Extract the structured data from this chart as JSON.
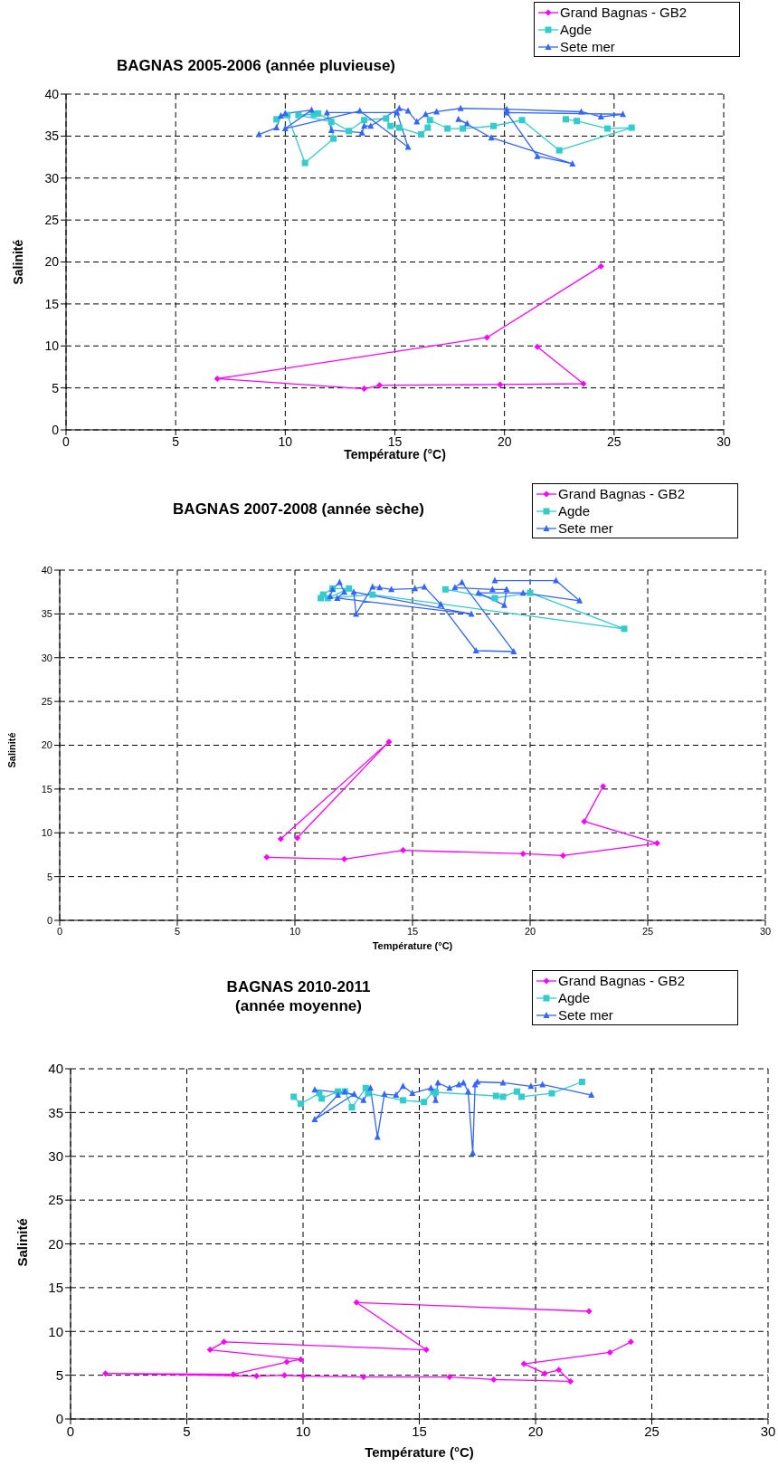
{
  "chart_data": [
    {
      "type": "line",
      "title": "BAGNAS 2005-2006 (année pluvieuse)",
      "xlabel": "Température (°C)",
      "ylabel": "Salinité",
      "xlim": [
        0,
        30
      ],
      "xticks": [
        0,
        5,
        10,
        15,
        20,
        25,
        30
      ],
      "ylim": [
        0,
        40
      ],
      "yticks": [
        0,
        5,
        10,
        15,
        20,
        25,
        30,
        35,
        40
      ],
      "grid": true,
      "legend": "top right",
      "line_style": "solid",
      "series": [
        {
          "name": "Grand Bagnas - GB2",
          "color": "#ff00ff",
          "marker": "diamond",
          "x": [
            24.4,
            19.2,
            6.9,
            13.6,
            14.3,
            19.8,
            23.6,
            21.5
          ],
          "values": [
            19.5,
            11.0,
            6.1,
            4.9,
            5.3,
            5.4,
            5.5,
            9.9
          ]
        },
        {
          "name": "Agde",
          "color": "#33cccc",
          "marker": "square",
          "x": [
            9.6,
            10.1,
            10.9,
            12.2,
            12.1,
            10.6,
            11.3,
            11.5,
            12.9,
            13.6,
            14.6,
            14.8,
            15.2,
            16.2,
            16.5,
            16.6,
            17.4,
            18.1,
            19.5,
            20.8,
            22.5,
            25.8,
            24.7,
            23.3,
            22.8
          ],
          "values": [
            37.0,
            37.5,
            31.8,
            34.7,
            36.7,
            37.5,
            37.6,
            37.7,
            35.6,
            36.9,
            37.1,
            36.2,
            36.0,
            35.2,
            36.0,
            36.9,
            35.9,
            35.9,
            36.2,
            36.9,
            33.3,
            36.0,
            35.9,
            36.8,
            37.0
          ]
        },
        {
          "name": "Sete mer",
          "color": "#3366ff",
          "marker": "triangle",
          "x": [
            8.8,
            9.6,
            9.8,
            10.0,
            11.2,
            10.0,
            13.4,
            15.6,
            15.1,
            11.9,
            12.1,
            13.5,
            13.6,
            13.9,
            15.2,
            15.6,
            16.0,
            16.4,
            16.9,
            18.0,
            20.1,
            23.5,
            24.4,
            25.4,
            20.1,
            21.5,
            23.1,
            19.4,
            17.9,
            18.3
          ],
          "values": [
            35.2,
            36.0,
            37.4,
            37.7,
            38.1,
            35.9,
            38.0,
            33.7,
            37.8,
            37.8,
            35.7,
            35.4,
            36.2,
            36.2,
            38.3,
            38.0,
            36.7,
            37.6,
            37.9,
            38.3,
            38.2,
            37.9,
            37.3,
            37.6,
            37.8,
            32.6,
            31.7,
            34.8,
            37.0,
            36.5
          ]
        }
      ]
    },
    {
      "type": "line",
      "title": "BAGNAS 2007-2008 (année sèche)",
      "xlabel": "Température (°C)",
      "ylabel": "Salinité",
      "xlim": [
        0,
        30
      ],
      "xticks": [
        0,
        5,
        10,
        15,
        20,
        25,
        30
      ],
      "ylim": [
        0,
        40
      ],
      "yticks": [
        0,
        5,
        10,
        15,
        20,
        25,
        30,
        35,
        40
      ],
      "grid": true,
      "legend": "top right",
      "line_style": "solid",
      "series": [
        {
          "name": "Grand Bagnas - GB2",
          "color": "#ff00ff",
          "marker": "diamond",
          "x": [
            23.1,
            22.3,
            25.4,
            21.4,
            19.7,
            14.6,
            12.1,
            8.8,
            null,
            9.4,
            14.0,
            10.1
          ],
          "values": [
            15.3,
            11.3,
            8.8,
            7.4,
            7.6,
            8.0,
            7.0,
            7.2,
            null,
            9.3,
            20.4,
            9.4
          ]
        },
        {
          "name": "Agde",
          "color": "#33cccc",
          "marker": "square",
          "x": [
            11.1,
            11.2,
            11.6,
            12.3,
            11.4,
            13.3,
            24.0,
            20.0,
            18.5,
            16.4
          ],
          "values": [
            36.8,
            37.2,
            37.9,
            37.9,
            36.8,
            37.2,
            33.3,
            37.4,
            36.8,
            37.8
          ]
        },
        {
          "name": "Sete mer",
          "color": "#3366ff",
          "marker": "triangle",
          "x": [
            11.5,
            11.6,
            11.9,
            12.1,
            11.8,
            17.5,
            12.5,
            12.6,
            13.3,
            13.6,
            14.1,
            15.1,
            15.5,
            16.2,
            17.7,
            19.3,
            17.1,
            16.8,
            18.4,
            19.0,
            18.9,
            17.8,
            19.7,
            22.1,
            21.1,
            18.5
          ],
          "values": [
            37.0,
            37.8,
            38.6,
            37.5,
            36.8,
            35.0,
            37.5,
            35.0,
            38.1,
            38.0,
            37.8,
            37.9,
            38.1,
            36.1,
            30.8,
            30.7,
            38.6,
            38.0,
            37.8,
            37.8,
            36.0,
            37.4,
            37.4,
            36.5,
            38.8,
            38.8
          ]
        }
      ]
    },
    {
      "type": "line",
      "title": "BAGNAS 2010-2011\n(année moyenne)",
      "xlabel": "Température (°C)",
      "ylabel": "Salinité",
      "xlim": [
        0,
        30
      ],
      "xticks": [
        0,
        5,
        10,
        15,
        20,
        25,
        30
      ],
      "ylim": [
        0,
        40
      ],
      "yticks": [
        0,
        5,
        10,
        15,
        20,
        25,
        30,
        35,
        40
      ],
      "grid": true,
      "legend": "top right",
      "line_style": "solid",
      "series": [
        {
          "name": "Grand Bagnas - GB2",
          "color": "#ff00ff",
          "marker": "diamond",
          "x": [
            22.3,
            12.3,
            15.3,
            6.6,
            6.0,
            9.9,
            9.3,
            7.0,
            1.5,
            8.0,
            9.2,
            10.0,
            12.6,
            16.3,
            18.2,
            21.5,
            21.0,
            20.4,
            19.5,
            23.2,
            24.1
          ],
          "values": [
            12.3,
            13.3,
            7.9,
            8.8,
            7.9,
            6.8,
            6.5,
            5.1,
            5.2,
            4.9,
            5.0,
            4.9,
            4.8,
            4.8,
            4.5,
            4.3,
            5.6,
            5.2,
            6.3,
            7.6,
            8.8
          ]
        },
        {
          "name": "Agde",
          "color": "#33cccc",
          "marker": "square",
          "x": [
            9.6,
            9.9,
            10.7,
            10.8,
            11.5,
            11.8,
            12.1,
            12.7,
            12.8,
            14.3,
            15.2,
            15.6,
            15.7,
            18.3,
            18.6,
            19.2,
            19.4,
            20.7,
            22.0
          ],
          "values": [
            36.8,
            36.0,
            37.2,
            36.6,
            37.4,
            37.4,
            35.6,
            37.8,
            37.2,
            36.4,
            36.2,
            37.4,
            37.3,
            36.9,
            36.8,
            37.4,
            36.8,
            37.2,
            38.5
          ]
        },
        {
          "name": "Sete mer",
          "color": "#3366ff",
          "marker": "triangle",
          "x": [
            10.5,
            12.2,
            10.5,
            11.5,
            11.8,
            12.6,
            12.9,
            13.2,
            13.5,
            14.0,
            14.3,
            14.7,
            15.5,
            15.7,
            15.8,
            16.3,
            16.7,
            16.9,
            17.1,
            17.3,
            17.4,
            17.5,
            18.6,
            19.8,
            20.3,
            22.4
          ],
          "values": [
            37.6,
            37.1,
            34.2,
            37.0,
            37.4,
            36.4,
            37.8,
            32.2,
            37.1,
            37.0,
            38.0,
            37.2,
            37.8,
            36.4,
            38.4,
            37.8,
            38.2,
            38.4,
            37.4,
            30.4,
            38.2,
            38.5,
            38.4,
            38.0,
            38.2,
            37.0
          ]
        }
      ]
    }
  ]
}
